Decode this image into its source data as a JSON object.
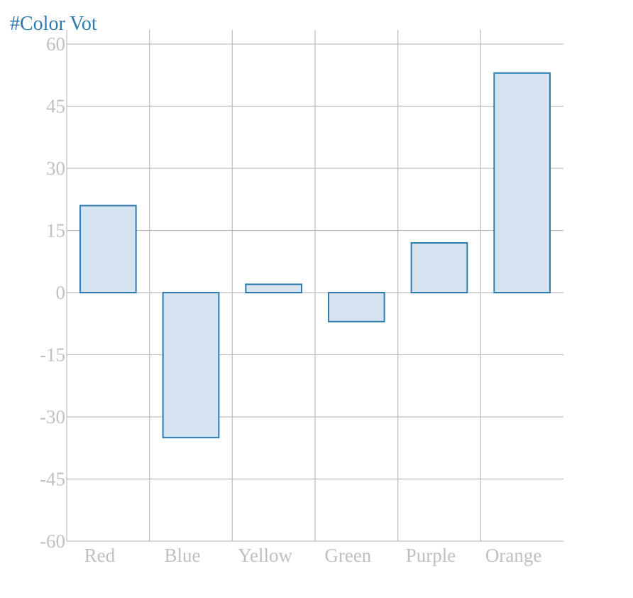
{
  "chart_data": {
    "type": "bar",
    "categories": [
      "Red",
      "Blue",
      "Yellow",
      "Green",
      "Purple",
      "Orange"
    ],
    "series": [
      {
        "name": "#Color Vot",
        "values": [
          21,
          -35,
          2,
          -7,
          12,
          53
        ]
      }
    ],
    "ylim": [
      -60,
      60
    ],
    "yticks": [
      60,
      45,
      30,
      15,
      0,
      -15,
      -30,
      -45,
      -60
    ],
    "ytick_labels": [
      "60",
      "45",
      "30",
      "15",
      "0",
      "-15",
      "-30",
      "-45",
      "-60"
    ],
    "grid": true,
    "legend_position": "top-left"
  },
  "colors": {
    "bar_fill": "#d5e4f0",
    "bar_stroke": "#2e7bb0",
    "grid": "#bdbdbd",
    "tick_text": "#c0c0c0",
    "legend_text": "#2e7bb0"
  }
}
